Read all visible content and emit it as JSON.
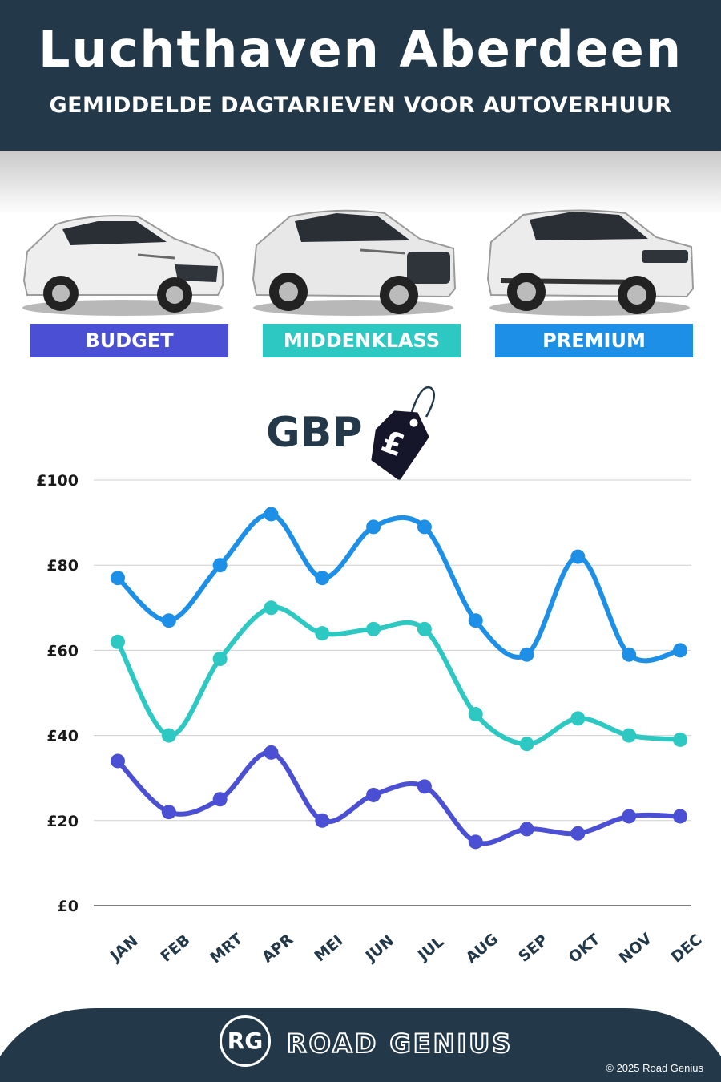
{
  "header": {
    "title": "Luchthaven Aberdeen",
    "subtitle": "GEMIDDELDE DAGTARIEVEN VOOR AUTOVERHUUR"
  },
  "categories": [
    {
      "label": "BUDGET",
      "color": "#4a4fd3"
    },
    {
      "label": "MIDDENKLASS",
      "color": "#2ec8c2"
    },
    {
      "label": "PREMIUM",
      "color": "#1e8fe6"
    }
  ],
  "currency": {
    "label": "GBP",
    "tag_symbol": "£"
  },
  "chart_data": {
    "type": "line",
    "categories": [
      "JAN",
      "FEB",
      "MRT",
      "APR",
      "MEI",
      "JUN",
      "JUL",
      "AUG",
      "SEP",
      "OKT",
      "NOV",
      "DEC"
    ],
    "series": [
      {
        "name": "PREMIUM",
        "color": "#1e8fe6",
        "values": [
          77,
          67,
          80,
          92,
          77,
          89,
          89,
          67,
          59,
          82,
          59,
          60
        ]
      },
      {
        "name": "MIDDENKLASS",
        "color": "#2ec8c2",
        "values": [
          62,
          40,
          58,
          70,
          64,
          65,
          65,
          45,
          38,
          44,
          40,
          39
        ]
      },
      {
        "name": "BUDGET",
        "color": "#4a4fd3",
        "values": [
          34,
          22,
          25,
          36,
          20,
          26,
          28,
          15,
          18,
          17,
          21,
          21
        ]
      }
    ],
    "y_ticks": [
      "£0",
      "£20",
      "£40",
      "£60",
      "£80",
      "£100"
    ],
    "ylim": [
      0,
      100
    ],
    "grid": true
  },
  "footer": {
    "logo_initials": "RG",
    "brand": "ROAD GENIUS",
    "copyright": "© 2025 Road Genius",
    "bg_color": "#233848"
  }
}
